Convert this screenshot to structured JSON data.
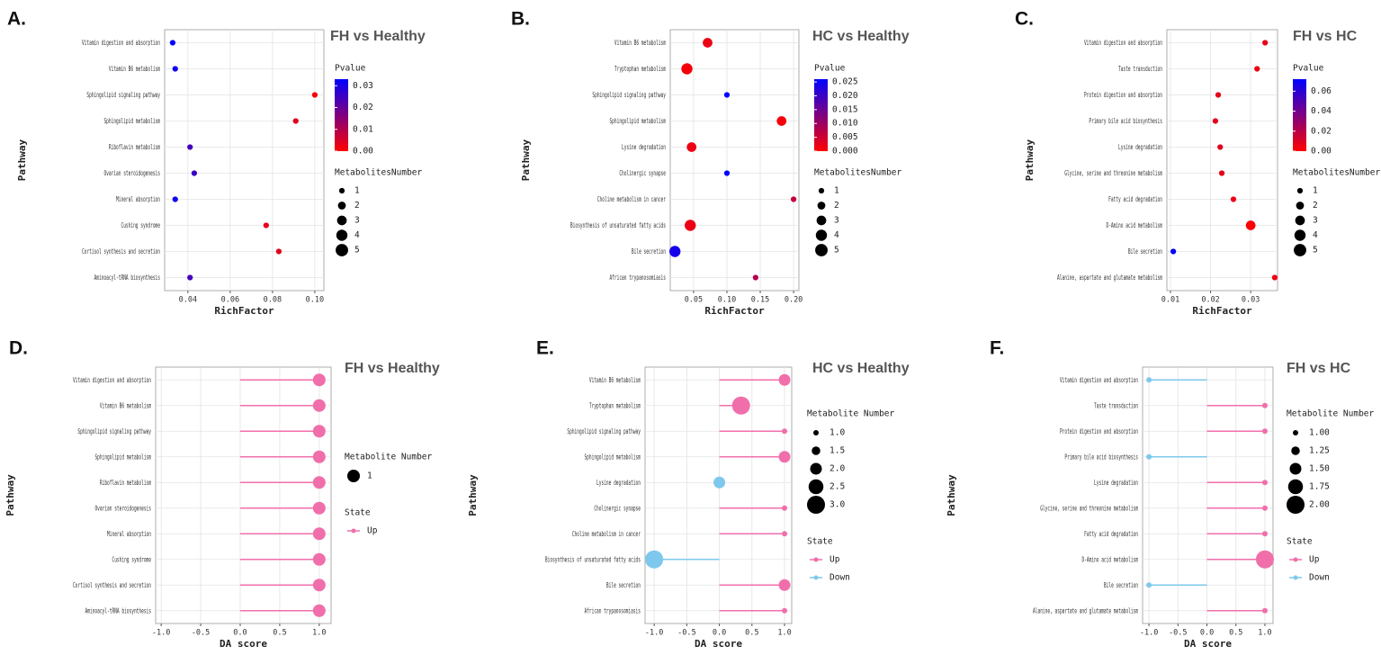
{
  "chart_data": [
    {
      "type": "bubble",
      "panel_label": "A.",
      "title": "FH vs Healthy",
      "x_label": "RichFactor",
      "y_label": "Pathway",
      "categories": [
        "Vitamin digestion and absorption",
        "Vitamin B6 metabolism",
        "Sphingolipid signaling pathway",
        "Sphingolipid metabolism",
        "Riboflavin metabolism",
        "Ovarian steroidogenesis",
        "Mineral absorption",
        "Cushing syndrome",
        "Cortisol synthesis and secretion",
        "Aminoacyl-tRNA biosynthesis"
      ],
      "values": [
        0.0328,
        0.034,
        0.1,
        0.091,
        0.041,
        0.043,
        0.034,
        0.077,
        0.083,
        0.041
      ],
      "sizes": [
        1,
        1,
        1,
        1,
        1,
        1,
        1,
        1,
        1,
        1
      ],
      "pvalues": [
        0.033,
        0.031,
        0.001,
        0.004,
        0.024,
        0.026,
        0.031,
        0.003,
        0.004,
        0.024
      ],
      "xlim": [
        0.029,
        0.1043
      ],
      "xticks": [
        0.04,
        0.06,
        0.08,
        {
          "value": 0.1,
          "label": "0.10"
        }
      ],
      "color_title": "Pvalue",
      "color_low": "#ff0000",
      "color_high": "#0000ff",
      "color_lim": [
        0,
        0.033
      ],
      "color_ticks": [
        {
          "value": 0,
          "label": "0.00"
        },
        0.01,
        0.02,
        0.03
      ],
      "size_title": "MetabolitesNumber",
      "size_legend": [
        1,
        2,
        3,
        4,
        5
      ],
      "grid": true
    },
    {
      "type": "bubble",
      "panel_label": "B.",
      "title": "HC vs Healthy",
      "x_label": "RichFactor",
      "y_label": "Pathway",
      "categories": [
        "Vitamin B6 metabolism",
        "Tryptophan metabolism",
        "Sphingolipid signaling pathway",
        "Sphingolipid metabolism",
        "Lysine degradation",
        "Cholinergic synapse",
        "Choline metabolism in cancer",
        "Biosynthesis of unsaturated fatty acids",
        "Bile secretion",
        "African trypanosomiasis"
      ],
      "values": [
        0.071,
        0.04,
        0.1,
        0.182,
        0.047,
        0.1,
        0.2,
        0.045,
        0.022,
        0.143
      ],
      "sizes": [
        3,
        4,
        1,
        3,
        3,
        1,
        1,
        4,
        4,
        1
      ],
      "pvalues": [
        0.002,
        0.001,
        0.026,
        0.001,
        0.002,
        0.026,
        0.006,
        0.002,
        0.024,
        0.008
      ],
      "xlim": [
        0.015,
        0.208
      ],
      "xticks": [
        0.05,
        {
          "value": 0.1,
          "label": "0.10"
        },
        0.15,
        {
          "value": 0.2,
          "label": "0.20"
        }
      ],
      "color_title": "Pvalue",
      "color_low": "#ff0000",
      "color_high": "#0000ff",
      "color_lim": [
        0,
        0.026
      ],
      "color_ticks": [
        {
          "value": 0,
          "label": "0.000"
        },
        0.005,
        {
          "value": 0.01,
          "label": "0.010"
        },
        0.015,
        {
          "value": 0.02,
          "label": "0.020"
        },
        0.025
      ],
      "size_title": "MetabolitesNumber",
      "size_legend": [
        1,
        2,
        3,
        4,
        5
      ],
      "grid": true
    },
    {
      "type": "bubble",
      "panel_label": "C.",
      "title": "FH vs HC",
      "x_label": "RichFactor",
      "y_label": "Pathway",
      "categories": [
        "Vitamin digestion and absorption",
        "Taste transduction",
        "Protein digestion and absorption",
        "Primary bile acid biosynthesis",
        "Lysine degradation",
        "Glycine, serine and threonine metabolism",
        "Fatty acid degradation",
        "D-Amino acid metabolism",
        "Bile secretion",
        "Alanine, aspartate and glutamate metabolism"
      ],
      "values": [
        0.0336,
        0.0316,
        0.0219,
        0.0212,
        0.0224,
        0.0228,
        0.0257,
        0.03,
        0.0107,
        0.036
      ],
      "sizes": [
        1,
        1,
        1,
        1,
        1,
        1,
        1,
        3,
        1,
        1
      ],
      "pvalues": [
        0.006,
        0.005,
        0.007,
        0.008,
        0.008,
        0.008,
        0.005,
        0.001,
        0.072,
        0.004
      ],
      "xlim": [
        0.0091,
        0.0367
      ],
      "xticks": [
        0.01,
        0.02,
        0.03
      ],
      "color_title": "Pvalue",
      "color_low": "#ff0000",
      "color_high": "#0000ff",
      "color_lim": [
        0,
        0.072
      ],
      "color_ticks": [
        {
          "value": 0,
          "label": "0.00"
        },
        0.02,
        0.04,
        0.06
      ],
      "size_title": "MetabolitesNumber",
      "size_legend": [
        1,
        2,
        3,
        4,
        5
      ],
      "grid": true
    },
    {
      "type": "lollipop",
      "panel_label": "D.",
      "title": "FH vs Healthy",
      "x_label": "DA score",
      "y_label": "Pathway",
      "categories": [
        "Vitamin digestion and absorption",
        "Vitamin B6 metabolism",
        "Sphingolipid signaling pathway",
        "Sphingolipid metabolism",
        "Riboflavin metabolism",
        "Ovarian steroidogenesis",
        "Mineral absorption",
        "Cushing syndrome",
        "Cortisol synthesis and secretion",
        "Aminoacyl-tRNA biosynthesis"
      ],
      "values": [
        1,
        1,
        1,
        1,
        1,
        1,
        1,
        1,
        1,
        1
      ],
      "sizes": [
        1,
        1,
        1,
        1,
        1,
        1,
        1,
        1,
        1,
        1
      ],
      "states": [
        "Up",
        "Up",
        "Up",
        "Up",
        "Up",
        "Up",
        "Up",
        "Up",
        "Up",
        "Up"
      ],
      "xlim": [
        -1.07,
        1.15
      ],
      "xticks": [
        {
          "value": -1,
          "label": "-1.0"
        },
        -0.5,
        {
          "value": 0,
          "label": "0.0"
        },
        0.5,
        {
          "value": 1,
          "label": "1.0"
        }
      ],
      "size_title": "Metabolite Number",
      "size_legend": [
        1
      ],
      "state_title": "State",
      "state_legend": [
        {
          "name": "Up",
          "color": "#f06fab"
        }
      ],
      "grid": true
    },
    {
      "type": "lollipop",
      "panel_label": "E.",
      "title": "HC vs Healthy",
      "x_label": "DA score",
      "y_label": "Pathway",
      "categories": [
        "Vitamin B6 metabolism",
        "Tryptophan metabolism",
        "Sphingolipid signaling pathway",
        "Sphingolipid metabolism",
        "Lysine degradation",
        "Cholinergic synapse",
        "Choline metabolism in cancer",
        "Biosynthesis of unsaturated fatty acids",
        "Bile secretion",
        "African trypanosomiasis"
      ],
      "values": [
        1,
        0.333,
        1,
        1,
        0,
        1,
        1,
        -1,
        1,
        1
      ],
      "sizes": [
        2,
        3,
        1,
        2,
        2,
        1,
        1,
        3,
        2,
        1
      ],
      "states": [
        "Up",
        "Up",
        "Up",
        "Up",
        "Down",
        "Up",
        "Up",
        "Down",
        "Up",
        "Up"
      ],
      "xlim": [
        -1.14,
        1.11
      ],
      "xticks": [
        {
          "value": -1,
          "label": "-1.0"
        },
        -0.5,
        {
          "value": 0,
          "label": "0.0"
        },
        0.5,
        {
          "value": 1,
          "label": "1.0"
        }
      ],
      "size_title": "Metabolite Number",
      "size_legend": [
        {
          "value": 1,
          "label": "1.0"
        },
        1.5,
        {
          "value": 2,
          "label": "2.0"
        },
        2.5,
        {
          "value": 3,
          "label": "3.0"
        }
      ],
      "state_title": "State",
      "state_legend": [
        {
          "name": "Up",
          "color": "#f06fab"
        },
        {
          "name": "Down",
          "color": "#7ec8ee"
        }
      ],
      "grid": true
    },
    {
      "type": "lollipop",
      "panel_label": "F.",
      "title": "FH vs HC",
      "x_label": "DA score",
      "y_label": "Pathway",
      "categories": [
        "Vitamin digestion and absorption",
        "Taste transduction",
        "Protein digestion and absorption",
        "Primary bile acid biosynthesis",
        "Lysine degradation",
        "Glycine, serine and threonine metabolism",
        "Fatty acid degradation",
        "D-Amino acid metabolism",
        "Bile secretion",
        "Alanine, aspartate and glutamate metabolism"
      ],
      "values": [
        -1,
        1,
        1,
        -1,
        1,
        1,
        1,
        1,
        -1,
        1
      ],
      "sizes": [
        1,
        1,
        1,
        1,
        1,
        1,
        1,
        2,
        1,
        1
      ],
      "states": [
        "Down",
        "Up",
        "Up",
        "Down",
        "Up",
        "Up",
        "Up",
        "Up",
        "Down",
        "Up"
      ],
      "xlim": [
        -1.11,
        1.14
      ],
      "xticks": [
        {
          "value": -1,
          "label": "-1.0"
        },
        -0.5,
        {
          "value": 0,
          "label": "0.0"
        },
        0.5,
        {
          "value": 1,
          "label": "1.0"
        }
      ],
      "size_title": "Metabolite Number",
      "size_legend": [
        {
          "value": 1,
          "label": "1.00"
        },
        {
          "value": 1.25,
          "label": "1.25"
        },
        {
          "value": 1.5,
          "label": "1.50"
        },
        {
          "value": 1.75,
          "label": "1.75"
        },
        {
          "value": 2,
          "label": "2.00"
        }
      ],
      "state_title": "State",
      "state_legend": [
        {
          "name": "Up",
          "color": "#f06fab"
        },
        {
          "name": "Down",
          "color": "#7ec8ee"
        }
      ],
      "grid": true
    }
  ]
}
